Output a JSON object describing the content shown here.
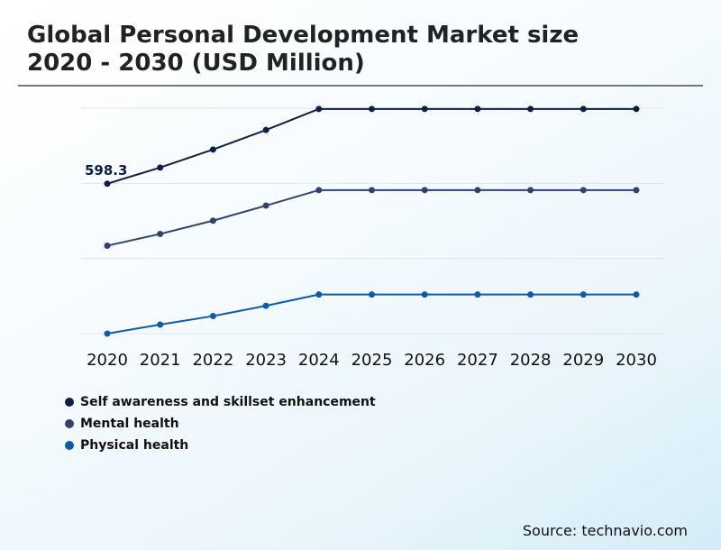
{
  "title_line1": "Global Personal Development Market size",
  "title_line2": "2020 - 2030 (USD Million)",
  "source": "Source: technavio.com",
  "chart_data": {
    "type": "line",
    "title": "Global Personal Development Market size 2020 - 2030 (USD Million)",
    "categories": [
      "2020",
      "2021",
      "2022",
      "2023",
      "2024",
      "2025",
      "2026",
      "2027",
      "2028",
      "2029",
      "2030"
    ],
    "ylim": [
      0,
      900
    ],
    "grid": true,
    "legend": "bottom-left",
    "annotations": [
      {
        "series": 0,
        "category": "2020",
        "text": "598.3"
      }
    ],
    "series": [
      {
        "name": "Self awareness and skillset enhancement",
        "color": "#0d1f45",
        "values": [
          598.3,
          663,
          735,
          813,
          897,
          897,
          897,
          897,
          897,
          897,
          897
        ]
      },
      {
        "name": "Mental health",
        "color": "#2f4373",
        "values": [
          351,
          398,
          451,
          511,
          573,
          573,
          573,
          573,
          573,
          573,
          573
        ]
      },
      {
        "name": "Physical health",
        "color": "#0e5aa7",
        "values": [
          0,
          36,
          70,
          111,
          156,
          156,
          156,
          156,
          156,
          156,
          156
        ]
      }
    ]
  }
}
